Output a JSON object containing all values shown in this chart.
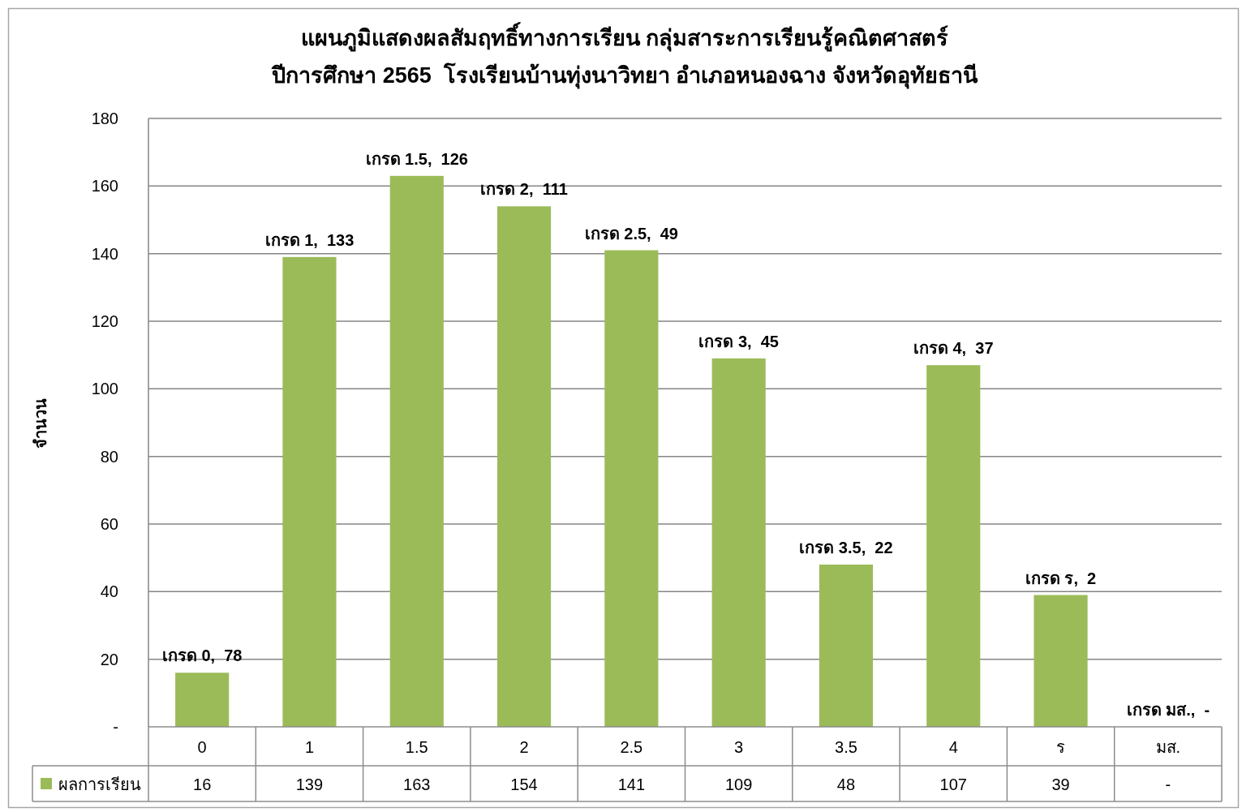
{
  "chart_data": {
    "type": "bar",
    "title": "แผนภูมิแสดงผลสัมฤทธิ์ทางการเรียน กลุ่มสาระการเรียนรู้คณิตศาสตร์\nปีการศึกษา 2565  โรงเรียนบ้านทุ่งนาวิทยา อำเภอหนองฉาง จังหวัดอุทัยธานี",
    "ylabel": "จำนวน",
    "categories": [
      "0",
      "1",
      "1.5",
      "2",
      "2.5",
      "3",
      "3.5",
      "4",
      "ร",
      "มส."
    ],
    "series": [
      {
        "name": "ผลการเรียน",
        "color": "#9bbb59",
        "values": [
          16,
          139,
          163,
          154,
          141,
          109,
          48,
          107,
          39,
          0
        ],
        "value_labels": [
          "16",
          "139",
          "163",
          "154",
          "141",
          "109",
          "48",
          "107",
          "39",
          "-"
        ]
      }
    ],
    "ylim": [
      0,
      180
    ],
    "yticks": [
      {
        "value": 0,
        "label": "-"
      },
      20,
      40,
      60,
      80,
      100,
      120,
      140,
      160,
      180
    ],
    "grid": "y",
    "legend": "bottom",
    "annotations": [
      {
        "text": "เกรด 0,  78",
        "x": "0",
        "y": 16
      },
      {
        "text": "เกรด 1,  133",
        "x": "1",
        "y": 139
      },
      {
        "text": "เกรด 1.5,  126",
        "x": "1.5",
        "y": 163
      },
      {
        "text": "เกรด 2,  111",
        "x": "2",
        "y": 154
      },
      {
        "text": "เกรด 2.5,  49",
        "x": "2.5",
        "y": 141
      },
      {
        "text": "เกรด 3,  45",
        "x": "3",
        "y": 109
      },
      {
        "text": "เกรด 3.5,  22",
        "x": "3.5",
        "y": 48
      },
      {
        "text": "เกรด 4,  37",
        "x": "4",
        "y": 107
      },
      {
        "text": "เกรด ร,  2",
        "x": "ร",
        "y": 39
      },
      {
        "text": "เกรด มส.,  -",
        "x": "มส.",
        "y": 0
      }
    ]
  }
}
